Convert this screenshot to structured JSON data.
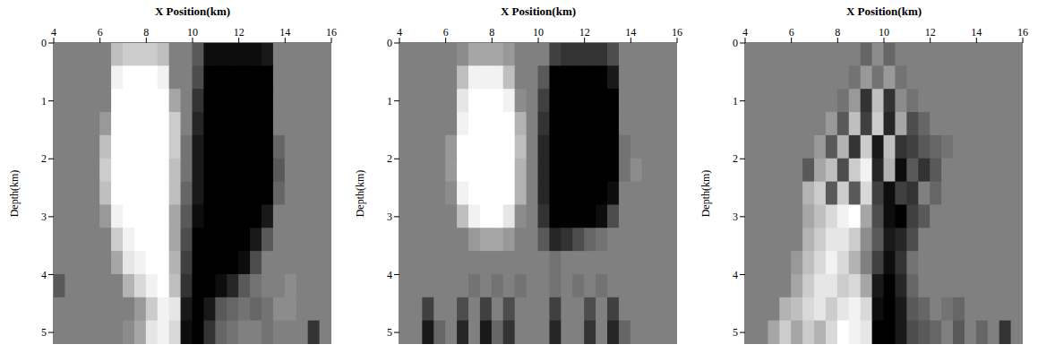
{
  "chart_data": [
    {
      "type": "heatmap",
      "x_label": "X Position(km)",
      "y_label": "Depth(km)",
      "xlim": [
        4,
        16
      ],
      "ylim": [
        0,
        5.2
      ],
      "xticks": [
        4,
        6,
        8,
        10,
        12,
        14,
        16
      ],
      "yticks": [
        0,
        1,
        2,
        3,
        4,
        5
      ],
      "color_range": [
        -1,
        1
      ],
      "cells": {
        "x": [
          4.25,
          4.75,
          5.25,
          5.75,
          6.25,
          6.75,
          7.25,
          7.75,
          8.25,
          8.75,
          9.25,
          9.75,
          10.25,
          10.75,
          11.25,
          11.75,
          12.25,
          12.75,
          13.25,
          13.75,
          14.25,
          14.75,
          15.25,
          15.75
        ],
        "y": [
          0.2,
          0.6,
          1.0,
          1.4,
          1.8,
          2.2,
          2.6,
          3.0,
          3.4,
          3.8,
          4.2,
          4.6,
          5.0
        ],
        "values": [
          [
            0,
            0,
            0,
            0,
            0,
            0.5,
            0.6,
            0.6,
            0.6,
            0.5,
            0,
            0,
            -0.3,
            -0.9,
            -0.9,
            -0.9,
            -0.9,
            -0.9,
            -0.8,
            0,
            0,
            0,
            0,
            0
          ],
          [
            0,
            0,
            0,
            0,
            0,
            0.9,
            1,
            1,
            1,
            0.9,
            0,
            0,
            -0.4,
            -1,
            -1,
            -1,
            -1,
            -1,
            -1,
            0,
            0,
            0,
            0,
            0
          ],
          [
            0,
            0,
            0,
            0,
            0,
            1,
            1,
            1,
            1,
            1,
            0.3,
            0,
            -0.6,
            -1,
            -1,
            -1,
            -1,
            -1,
            -1,
            0,
            0,
            0,
            0,
            0
          ],
          [
            0,
            0,
            0,
            0,
            0.2,
            1,
            1,
            1,
            1,
            1,
            0.6,
            0,
            -0.7,
            -1,
            -1,
            -1,
            -1,
            -1,
            -1,
            0,
            0,
            0,
            0,
            0
          ],
          [
            0,
            0,
            0,
            0,
            0.5,
            1,
            1,
            1,
            1,
            1,
            0.6,
            -0.1,
            -0.8,
            -1,
            -1,
            -1,
            -1,
            -1,
            -1,
            -0.2,
            0,
            0,
            0,
            0
          ],
          [
            0,
            0,
            0,
            0,
            0.6,
            1,
            1,
            1,
            1,
            1,
            0.5,
            -0.1,
            -0.8,
            -1,
            -1,
            -1,
            -1,
            -1,
            -1,
            -0.3,
            0,
            0,
            0,
            0
          ],
          [
            0,
            0,
            0,
            0,
            0.5,
            1,
            1,
            1,
            1,
            1,
            0.5,
            -0.2,
            -0.8,
            -1,
            -1,
            -1,
            -1,
            -1,
            -1,
            -0.2,
            0,
            0,
            0,
            0
          ],
          [
            0,
            0,
            0,
            0,
            0.2,
            0.9,
            1,
            1,
            1,
            1,
            0.3,
            -0.3,
            -0.9,
            -1,
            -1,
            -1,
            -1,
            -1,
            -0.8,
            0,
            0,
            0,
            0,
            0
          ],
          [
            0,
            0,
            0,
            0,
            0,
            0.6,
            0.9,
            1,
            1,
            1,
            0.3,
            -0.4,
            -1,
            -1,
            -1,
            -1,
            -1,
            -0.8,
            -0.3,
            0,
            0,
            0,
            0,
            0
          ],
          [
            0,
            0,
            0,
            0,
            0,
            0.3,
            0.8,
            0.9,
            1,
            1,
            0.4,
            -0.5,
            -1,
            -1,
            -1,
            -1,
            -0.9,
            -0.4,
            0,
            0,
            0,
            0,
            0,
            0
          ],
          [
            -0.3,
            0,
            0,
            0,
            0,
            0,
            0.4,
            0.7,
            0.9,
            1,
            0.5,
            -0.6,
            -1,
            -1,
            -0.9,
            -0.7,
            -0.3,
            -0.1,
            0,
            0,
            0.1,
            0,
            0,
            0
          ],
          [
            0,
            0,
            0,
            0,
            0,
            0,
            0,
            0.2,
            0.6,
            0.9,
            0.8,
            -0.8,
            -1,
            -0.8,
            -0.3,
            -0.2,
            -0.1,
            -0.2,
            -0.1,
            0.1,
            0.1,
            0,
            0,
            0
          ],
          [
            0,
            0,
            0,
            0,
            0,
            0,
            0.1,
            0.3,
            0.8,
            0.9,
            0.7,
            -0.9,
            -1,
            -0.6,
            -0.2,
            -0.1,
            0,
            0,
            -0.1,
            0,
            0,
            0,
            -0.6,
            0
          ]
        ]
      }
    },
    {
      "type": "heatmap",
      "x_label": "X Position(km)",
      "y_label": "Depth(km)",
      "xlim": [
        4,
        16
      ],
      "ylim": [
        0,
        5.2
      ],
      "xticks": [
        4,
        6,
        8,
        10,
        12,
        14,
        16
      ],
      "yticks": [
        0,
        1,
        2,
        3,
        4,
        5
      ],
      "color_range": [
        -1,
        1
      ],
      "cells": {
        "x": [
          4.25,
          4.75,
          5.25,
          5.75,
          6.25,
          6.75,
          7.25,
          7.75,
          8.25,
          8.75,
          9.25,
          9.75,
          10.25,
          10.75,
          11.25,
          11.75,
          12.25,
          12.75,
          13.25,
          13.75,
          14.25,
          14.75,
          15.25,
          15.75
        ],
        "y": [
          0.2,
          0.6,
          1.0,
          1.4,
          1.8,
          2.2,
          2.6,
          3.0,
          3.4,
          3.8,
          4.2,
          4.6,
          5.0
        ],
        "values": [
          [
            0,
            0,
            0,
            0,
            0,
            0.1,
            0.3,
            0.3,
            0.3,
            0.2,
            0,
            0,
            0,
            -0.5,
            -0.6,
            -0.6,
            -0.6,
            -0.6,
            -0.4,
            0,
            0,
            0,
            0,
            0
          ],
          [
            0,
            0,
            0,
            0,
            0,
            0.5,
            0.9,
            0.9,
            0.9,
            0.5,
            0,
            0,
            -0.3,
            -1,
            -1,
            -1,
            -1,
            -1,
            -0.8,
            0,
            0,
            0,
            0,
            0
          ],
          [
            0,
            0,
            0,
            0,
            0,
            0.8,
            1,
            1,
            1,
            0.9,
            0.1,
            0,
            -0.5,
            -1,
            -1,
            -1,
            -1,
            -1,
            -1,
            0,
            0,
            0,
            0,
            0
          ],
          [
            0,
            0,
            0,
            0,
            0,
            0.9,
            1,
            1,
            1,
            1,
            0.4,
            0,
            -0.6,
            -1,
            -1,
            -1,
            -1,
            -1,
            -1,
            0,
            0,
            0,
            0,
            0
          ],
          [
            0,
            0,
            0,
            0,
            0.2,
            1,
            1,
            1,
            1,
            1,
            0.5,
            0,
            -0.7,
            -1,
            -1,
            -1,
            -1,
            -1,
            -1,
            -0.1,
            0,
            0,
            0,
            0
          ],
          [
            0,
            0,
            0,
            0,
            0.2,
            1,
            1,
            1,
            1,
            1,
            0.4,
            0,
            -0.7,
            -1,
            -1,
            -1,
            -1,
            -1,
            -1,
            -0.1,
            0.1,
            0,
            0,
            0
          ],
          [
            0,
            0,
            0,
            0,
            0.1,
            0.9,
            1,
            1,
            1,
            1,
            0.4,
            0,
            -0.7,
            -1,
            -1,
            -1,
            -1,
            -1,
            -0.9,
            0,
            0,
            0,
            0,
            0
          ],
          [
            0,
            0,
            0,
            0,
            0,
            0.5,
            0.9,
            1,
            1,
            0.8,
            0.1,
            0,
            -0.6,
            -1,
            -1,
            -1,
            -1,
            -0.9,
            -0.4,
            0,
            0,
            0,
            0,
            0
          ],
          [
            0,
            0,
            0,
            0,
            0,
            0,
            0.2,
            0.3,
            0.3,
            0.2,
            0,
            0,
            -0.3,
            -0.7,
            -0.6,
            -0.4,
            -0.2,
            -0.1,
            0,
            0,
            0,
            0,
            0,
            0
          ],
          [
            0,
            0,
            0,
            0,
            0,
            0,
            0,
            0,
            0,
            0,
            0,
            0,
            0,
            -0.1,
            0,
            0,
            0,
            0,
            0,
            0,
            0,
            0,
            0,
            0
          ],
          [
            0,
            0,
            0,
            0,
            0,
            0,
            -0.1,
            0,
            -0.1,
            0,
            -0.1,
            0,
            0,
            -0.1,
            0,
            -0.1,
            0,
            -0.1,
            0,
            0,
            0,
            0,
            0,
            0
          ],
          [
            0,
            0,
            -0.5,
            0,
            0,
            -0.4,
            0,
            -0.5,
            0,
            -0.4,
            0,
            0,
            0,
            -0.5,
            0,
            0,
            -0.4,
            0,
            -0.5,
            0,
            0,
            0,
            0,
            0
          ],
          [
            0,
            0,
            -0.8,
            -0.2,
            0,
            -0.7,
            0,
            -0.8,
            -0.2,
            -0.6,
            0,
            0,
            0,
            -0.7,
            0,
            0,
            -0.6,
            0,
            -0.7,
            -0.2,
            0,
            0,
            0,
            0
          ]
        ]
      }
    },
    {
      "type": "heatmap",
      "x_label": "X Position(km)",
      "y_label": "Depth(km)",
      "xlim": [
        4,
        16
      ],
      "ylim": [
        0,
        5.2
      ],
      "xticks": [
        4,
        6,
        8,
        10,
        12,
        14,
        16
      ],
      "yticks": [
        0,
        1,
        2,
        3,
        4,
        5
      ],
      "color_range": [
        -1,
        1
      ],
      "cells": {
        "x": [
          4.25,
          4.75,
          5.25,
          5.75,
          6.25,
          6.75,
          7.25,
          7.75,
          8.25,
          8.75,
          9.25,
          9.75,
          10.25,
          10.75,
          11.25,
          11.75,
          12.25,
          12.75,
          13.25,
          13.75,
          14.25,
          14.75,
          15.25,
          15.75
        ],
        "y": [
          0.2,
          0.6,
          1.0,
          1.4,
          1.8,
          2.2,
          2.6,
          3.0,
          3.4,
          3.8,
          4.2,
          4.6,
          5.0
        ],
        "values": [
          [
            0,
            0,
            0,
            0,
            0,
            0,
            0,
            0,
            0,
            0,
            -0.2,
            0.1,
            -0.2,
            0,
            0,
            0,
            0,
            0,
            0,
            0,
            0,
            0,
            0,
            0
          ],
          [
            0,
            0,
            0,
            0,
            0,
            0,
            0,
            0,
            0,
            -0.1,
            0.2,
            -0.1,
            0.2,
            -0.1,
            0,
            0,
            0,
            0,
            0,
            0,
            0,
            0,
            0,
            0
          ],
          [
            0,
            0,
            0,
            0,
            0,
            0,
            0,
            0,
            -0.1,
            0.2,
            -0.6,
            0.5,
            -0.6,
            0.1,
            -0.1,
            0,
            0,
            0,
            0,
            0,
            0,
            0,
            0,
            0
          ],
          [
            0,
            0,
            0,
            0,
            0,
            0,
            0,
            0.2,
            -0.3,
            0.5,
            -0.5,
            0.6,
            -0.7,
            0.3,
            -0.4,
            -0.2,
            0,
            0,
            0,
            0,
            0,
            0,
            0,
            0
          ],
          [
            0,
            0,
            0,
            0,
            0,
            0,
            0.2,
            -0.3,
            0.4,
            -0.6,
            0.6,
            -0.8,
            0.5,
            -0.6,
            -0.5,
            -0.3,
            -0.2,
            -0.1,
            0,
            0,
            0,
            0,
            0,
            0
          ],
          [
            0,
            0,
            0,
            0,
            0,
            -0.3,
            0.3,
            0.5,
            -0.4,
            0.6,
            0.9,
            -0.7,
            0.4,
            -0.9,
            -0.3,
            -0.6,
            -0.3,
            0,
            0,
            0,
            0,
            0,
            0,
            0
          ],
          [
            0,
            0,
            0,
            0,
            0,
            0.4,
            0.6,
            -0.3,
            0.6,
            -0.3,
            0.7,
            -0.5,
            -0.9,
            -0.5,
            -0.6,
            0,
            -0.2,
            0,
            0,
            0,
            0,
            0,
            0,
            0
          ],
          [
            0,
            0,
            0,
            0,
            0,
            0.3,
            0.5,
            0.7,
            0.9,
            1,
            0.3,
            -0.4,
            -0.9,
            -1,
            -0.5,
            -0.3,
            0,
            0,
            0,
            0,
            0,
            0,
            0,
            0
          ],
          [
            0,
            0,
            0,
            0,
            0,
            0.4,
            0.6,
            0.8,
            0.8,
            0.6,
            0.1,
            -0.3,
            -0.8,
            -0.7,
            -0.4,
            0,
            0,
            0,
            0,
            0,
            0,
            0,
            0,
            0
          ],
          [
            0,
            0,
            0,
            0,
            0.2,
            0.5,
            0.7,
            0.9,
            0.7,
            0.4,
            0,
            -0.5,
            -0.9,
            -0.6,
            -0.1,
            0,
            0,
            0,
            0,
            0,
            0,
            0,
            0,
            0
          ],
          [
            0,
            0,
            0,
            0,
            0.3,
            0.6,
            0.8,
            0.8,
            0.6,
            0.7,
            0.3,
            -0.8,
            -1,
            -0.7,
            -0.2,
            0,
            0,
            0,
            0,
            0,
            0,
            0,
            0,
            0
          ],
          [
            0,
            0,
            0,
            0.4,
            0.5,
            0.7,
            0.8,
            0.6,
            0.8,
            0.9,
            0.7,
            -0.9,
            -1,
            -0.8,
            -0.3,
            -0.2,
            0,
            -0.1,
            -0.2,
            0,
            0,
            0,
            0,
            0
          ],
          [
            0,
            0,
            0.3,
            0.6,
            0.3,
            0.6,
            0.4,
            0.7,
            1,
            0.9,
            0.8,
            -1,
            -1,
            -0.8,
            -0.4,
            -0.3,
            -0.2,
            0,
            -0.3,
            0,
            -0.2,
            0,
            -0.6,
            0
          ]
        ]
      }
    }
  ]
}
